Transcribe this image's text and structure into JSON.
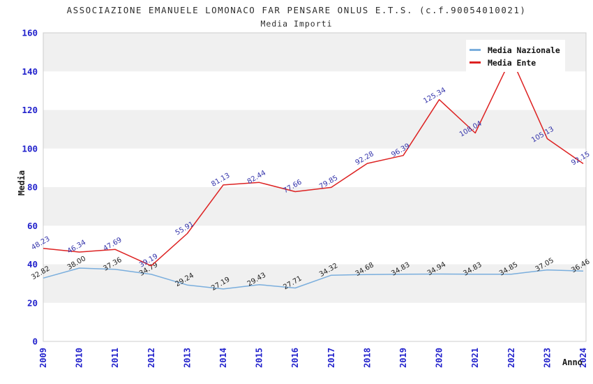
{
  "chart_data": {
    "type": "line",
    "title": "ASSOCIAZIONE EMANUELE LOMONACO FAR PENSARE ONLUS E.T.S. (c.f.90054010021)",
    "subtitle": "Media Importi",
    "xlabel": "Anno",
    "ylabel": "Media",
    "ylim": [
      0,
      160
    ],
    "ytick_step": 20,
    "yticks": [
      0,
      20,
      40,
      60,
      80,
      100,
      120,
      140,
      160
    ],
    "grid": "alternating-horizontal-bands",
    "legend_position": "top-right",
    "categories": [
      "2009",
      "2010",
      "2011",
      "2012",
      "2013",
      "2014",
      "2015",
      "2016",
      "2017",
      "2018",
      "2019",
      "2020",
      "2021",
      "2022",
      "2023",
      "2024"
    ],
    "series": [
      {
        "name": "Media Nazionale",
        "color": "#7aaedd",
        "label_color": "#222222",
        "values": [
          32.82,
          38.0,
          37.36,
          34.79,
          29.24,
          27.19,
          29.43,
          27.71,
          34.32,
          34.68,
          34.83,
          34.94,
          34.83,
          34.85,
          37.05,
          36.46
        ]
      },
      {
        "name": "Media Ente",
        "color": "#dd2222",
        "label_color": "#3333aa",
        "values": [
          48.23,
          46.34,
          47.69,
          39.19,
          55.91,
          81.13,
          82.44,
          77.66,
          79.85,
          92.28,
          96.39,
          125.34,
          108.04,
          147.0,
          105.13,
          92.15
        ],
        "label_hidden_index": 13
      }
    ],
    "colors": {
      "axis_tick_blue": "#2222cc",
      "band_gray": "#f0f0f0",
      "plot_border": "#cccccc",
      "title_text": "#2e2e2e",
      "axis_title_black": "#1a1a1a"
    }
  }
}
